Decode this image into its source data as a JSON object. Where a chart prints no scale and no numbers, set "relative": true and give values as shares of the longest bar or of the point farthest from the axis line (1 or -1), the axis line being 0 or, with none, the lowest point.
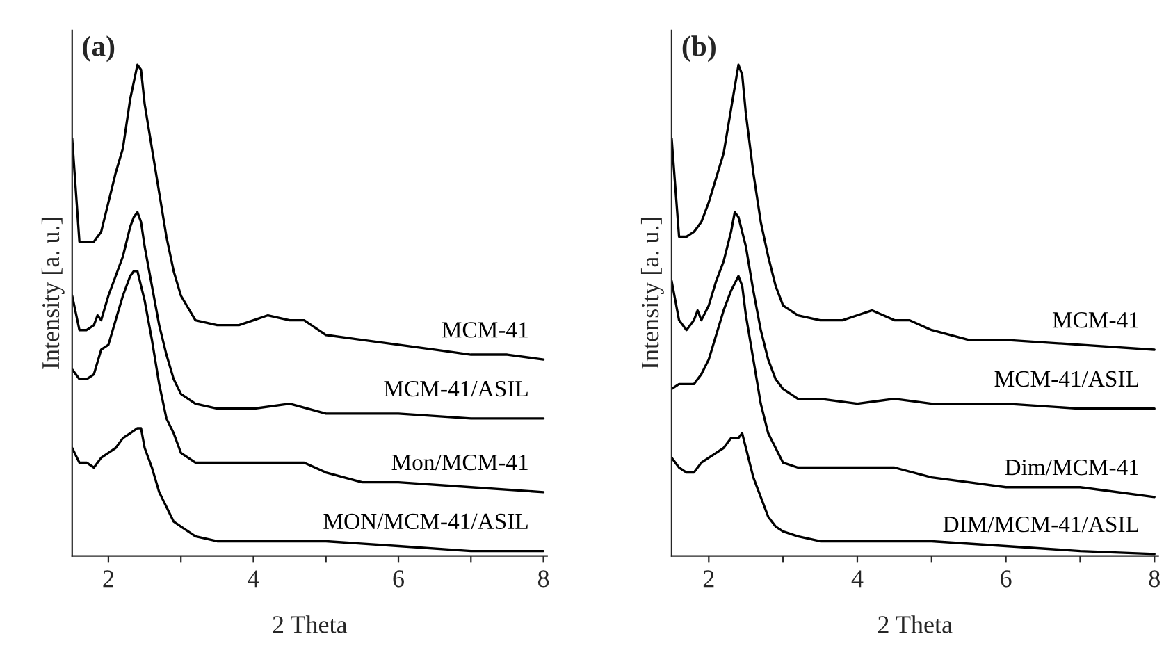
{
  "chart_data": [
    {
      "type": "line",
      "title": "(a)",
      "xlabel": "2 Theta",
      "ylabel": "Intensity [a. u.]",
      "relative": true,
      "xlim": [
        1.5,
        8.05
      ],
      "xticks": [
        2,
        {
          "value": 3,
          "label": null
        },
        4,
        {
          "value": 5,
          "label": null
        },
        6,
        {
          "value": 7,
          "label": null
        },
        8
      ],
      "tick_labels": "x",
      "grid": false,
      "legend": false,
      "series": [
        {
          "name": "MCM-41",
          "color": "#000000",
          "x": [
            1.5,
            1.6,
            1.7,
            1.8,
            1.9,
            2.0,
            2.1,
            2.2,
            2.3,
            2.4,
            2.45,
            2.5,
            2.6,
            2.7,
            2.8,
            2.9,
            3.0,
            3.2,
            3.5,
            3.8,
            4.0,
            4.2,
            4.5,
            4.7,
            5.0,
            5.5,
            6.0,
            6.5,
            7.0,
            7.5,
            8.0
          ],
          "values": [
            0.85,
            0.64,
            0.64,
            0.64,
            0.66,
            0.72,
            0.78,
            0.83,
            0.93,
            1.0,
            0.99,
            0.92,
            0.83,
            0.74,
            0.65,
            0.58,
            0.53,
            0.48,
            0.47,
            0.47,
            0.48,
            0.49,
            0.48,
            0.48,
            0.45,
            0.44,
            0.43,
            0.42,
            0.41,
            0.41,
            0.4
          ]
        },
        {
          "name": "MCM-41/ASIL",
          "color": "#000000",
          "x": [
            1.5,
            1.6,
            1.7,
            1.8,
            1.85,
            1.9,
            2.0,
            2.1,
            2.2,
            2.3,
            2.35,
            2.4,
            2.45,
            2.5,
            2.6,
            2.7,
            2.8,
            2.9,
            3.0,
            3.2,
            3.5,
            4.0,
            4.5,
            5.0,
            6.0,
            7.0,
            8.0
          ],
          "values": [
            0.53,
            0.46,
            0.46,
            0.47,
            0.49,
            0.48,
            0.53,
            0.57,
            0.61,
            0.67,
            0.69,
            0.7,
            0.68,
            0.63,
            0.55,
            0.47,
            0.41,
            0.36,
            0.33,
            0.31,
            0.3,
            0.3,
            0.31,
            0.29,
            0.29,
            0.28,
            0.28
          ]
        },
        {
          "name": "Mon/MCM-41",
          "color": "#000000",
          "x": [
            1.5,
            1.6,
            1.7,
            1.8,
            1.9,
            2.0,
            2.1,
            2.2,
            2.3,
            2.35,
            2.4,
            2.5,
            2.6,
            2.7,
            2.8,
            2.9,
            3.0,
            3.2,
            3.5,
            4.0,
            4.5,
            4.7,
            5.0,
            5.5,
            6.0,
            7.0,
            8.0
          ],
          "values": [
            0.38,
            0.36,
            0.36,
            0.37,
            0.42,
            0.43,
            0.48,
            0.53,
            0.57,
            0.58,
            0.58,
            0.52,
            0.44,
            0.35,
            0.28,
            0.25,
            0.21,
            0.19,
            0.19,
            0.19,
            0.19,
            0.19,
            0.17,
            0.15,
            0.15,
            0.14,
            0.13
          ]
        },
        {
          "name": "MON/MCM-41/ASIL",
          "color": "#000000",
          "x": [
            1.5,
            1.6,
            1.7,
            1.8,
            1.9,
            2.0,
            2.1,
            2.2,
            2.3,
            2.4,
            2.45,
            2.5,
            2.6,
            2.7,
            2.8,
            2.9,
            3.0,
            3.2,
            3.5,
            4.0,
            5.0,
            6.0,
            7.0,
            8.0
          ],
          "values": [
            0.22,
            0.19,
            0.19,
            0.18,
            0.2,
            0.21,
            0.22,
            0.24,
            0.25,
            0.26,
            0.26,
            0.22,
            0.18,
            0.13,
            0.1,
            0.07,
            0.06,
            0.04,
            0.03,
            0.03,
            0.03,
            0.02,
            0.01,
            0.01
          ]
        }
      ]
    },
    {
      "type": "line",
      "title": "(b)",
      "xlabel": "2 Theta",
      "ylabel": "Intensity [a. u.]",
      "relative": true,
      "xlim": [
        1.5,
        8.05
      ],
      "xticks": [
        2,
        {
          "value": 3,
          "label": null
        },
        4,
        {
          "value": 5,
          "label": null
        },
        6,
        {
          "value": 7,
          "label": null
        },
        8
      ],
      "tick_labels": "x",
      "grid": false,
      "legend": false,
      "series": [
        {
          "name": "MCM-41",
          "color": "#000000",
          "x": [
            1.5,
            1.6,
            1.7,
            1.8,
            1.9,
            2.0,
            2.1,
            2.2,
            2.3,
            2.4,
            2.45,
            2.5,
            2.6,
            2.7,
            2.8,
            2.9,
            3.0,
            3.2,
            3.5,
            3.8,
            4.0,
            4.2,
            4.5,
            4.7,
            5.0,
            5.5,
            6.0,
            7.0,
            8.0
          ],
          "values": [
            0.85,
            0.65,
            0.65,
            0.66,
            0.68,
            0.72,
            0.77,
            0.82,
            0.91,
            1.0,
            0.98,
            0.9,
            0.78,
            0.68,
            0.61,
            0.55,
            0.51,
            0.49,
            0.48,
            0.48,
            0.49,
            0.5,
            0.48,
            0.48,
            0.46,
            0.44,
            0.44,
            0.43,
            0.42
          ]
        },
        {
          "name": "MCM-41/ASIL",
          "color": "#000000",
          "x": [
            1.5,
            1.6,
            1.7,
            1.8,
            1.85,
            1.9,
            2.0,
            2.1,
            2.2,
            2.3,
            2.35,
            2.4,
            2.5,
            2.6,
            2.7,
            2.8,
            2.9,
            3.0,
            3.2,
            3.5,
            4.0,
            4.5,
            5.0,
            6.0,
            7.0,
            8.0
          ],
          "values": [
            0.56,
            0.48,
            0.46,
            0.48,
            0.5,
            0.48,
            0.51,
            0.56,
            0.6,
            0.66,
            0.7,
            0.69,
            0.63,
            0.54,
            0.46,
            0.4,
            0.36,
            0.34,
            0.32,
            0.32,
            0.31,
            0.32,
            0.31,
            0.31,
            0.3,
            0.3
          ]
        },
        {
          "name": "Dim/MCM-41",
          "color": "#000000",
          "x": [
            1.5,
            1.6,
            1.7,
            1.8,
            1.9,
            2.0,
            2.1,
            2.2,
            2.3,
            2.4,
            2.45,
            2.5,
            2.6,
            2.7,
            2.8,
            2.9,
            3.0,
            3.2,
            3.5,
            4.0,
            4.5,
            5.0,
            5.5,
            6.0,
            7.0,
            8.0
          ],
          "values": [
            0.34,
            0.35,
            0.35,
            0.35,
            0.37,
            0.4,
            0.45,
            0.5,
            0.54,
            0.57,
            0.55,
            0.49,
            0.4,
            0.31,
            0.25,
            0.22,
            0.19,
            0.18,
            0.18,
            0.18,
            0.18,
            0.16,
            0.15,
            0.14,
            0.14,
            0.12
          ]
        },
        {
          "name": "DIM/MCM-41/ASIL",
          "color": "#000000",
          "x": [
            1.5,
            1.6,
            1.7,
            1.8,
            1.9,
            2.0,
            2.1,
            2.2,
            2.3,
            2.4,
            2.45,
            2.5,
            2.6,
            2.7,
            2.8,
            2.9,
            3.0,
            3.2,
            3.5,
            4.0,
            5.0,
            6.0,
            7.0,
            8.0
          ],
          "values": [
            0.2,
            0.18,
            0.17,
            0.17,
            0.19,
            0.2,
            0.21,
            0.22,
            0.24,
            0.24,
            0.25,
            0.22,
            0.16,
            0.12,
            0.08,
            0.06,
            0.05,
            0.04,
            0.03,
            0.03,
            0.03,
            0.02,
            0.01,
            0.004
          ]
        }
      ]
    }
  ]
}
